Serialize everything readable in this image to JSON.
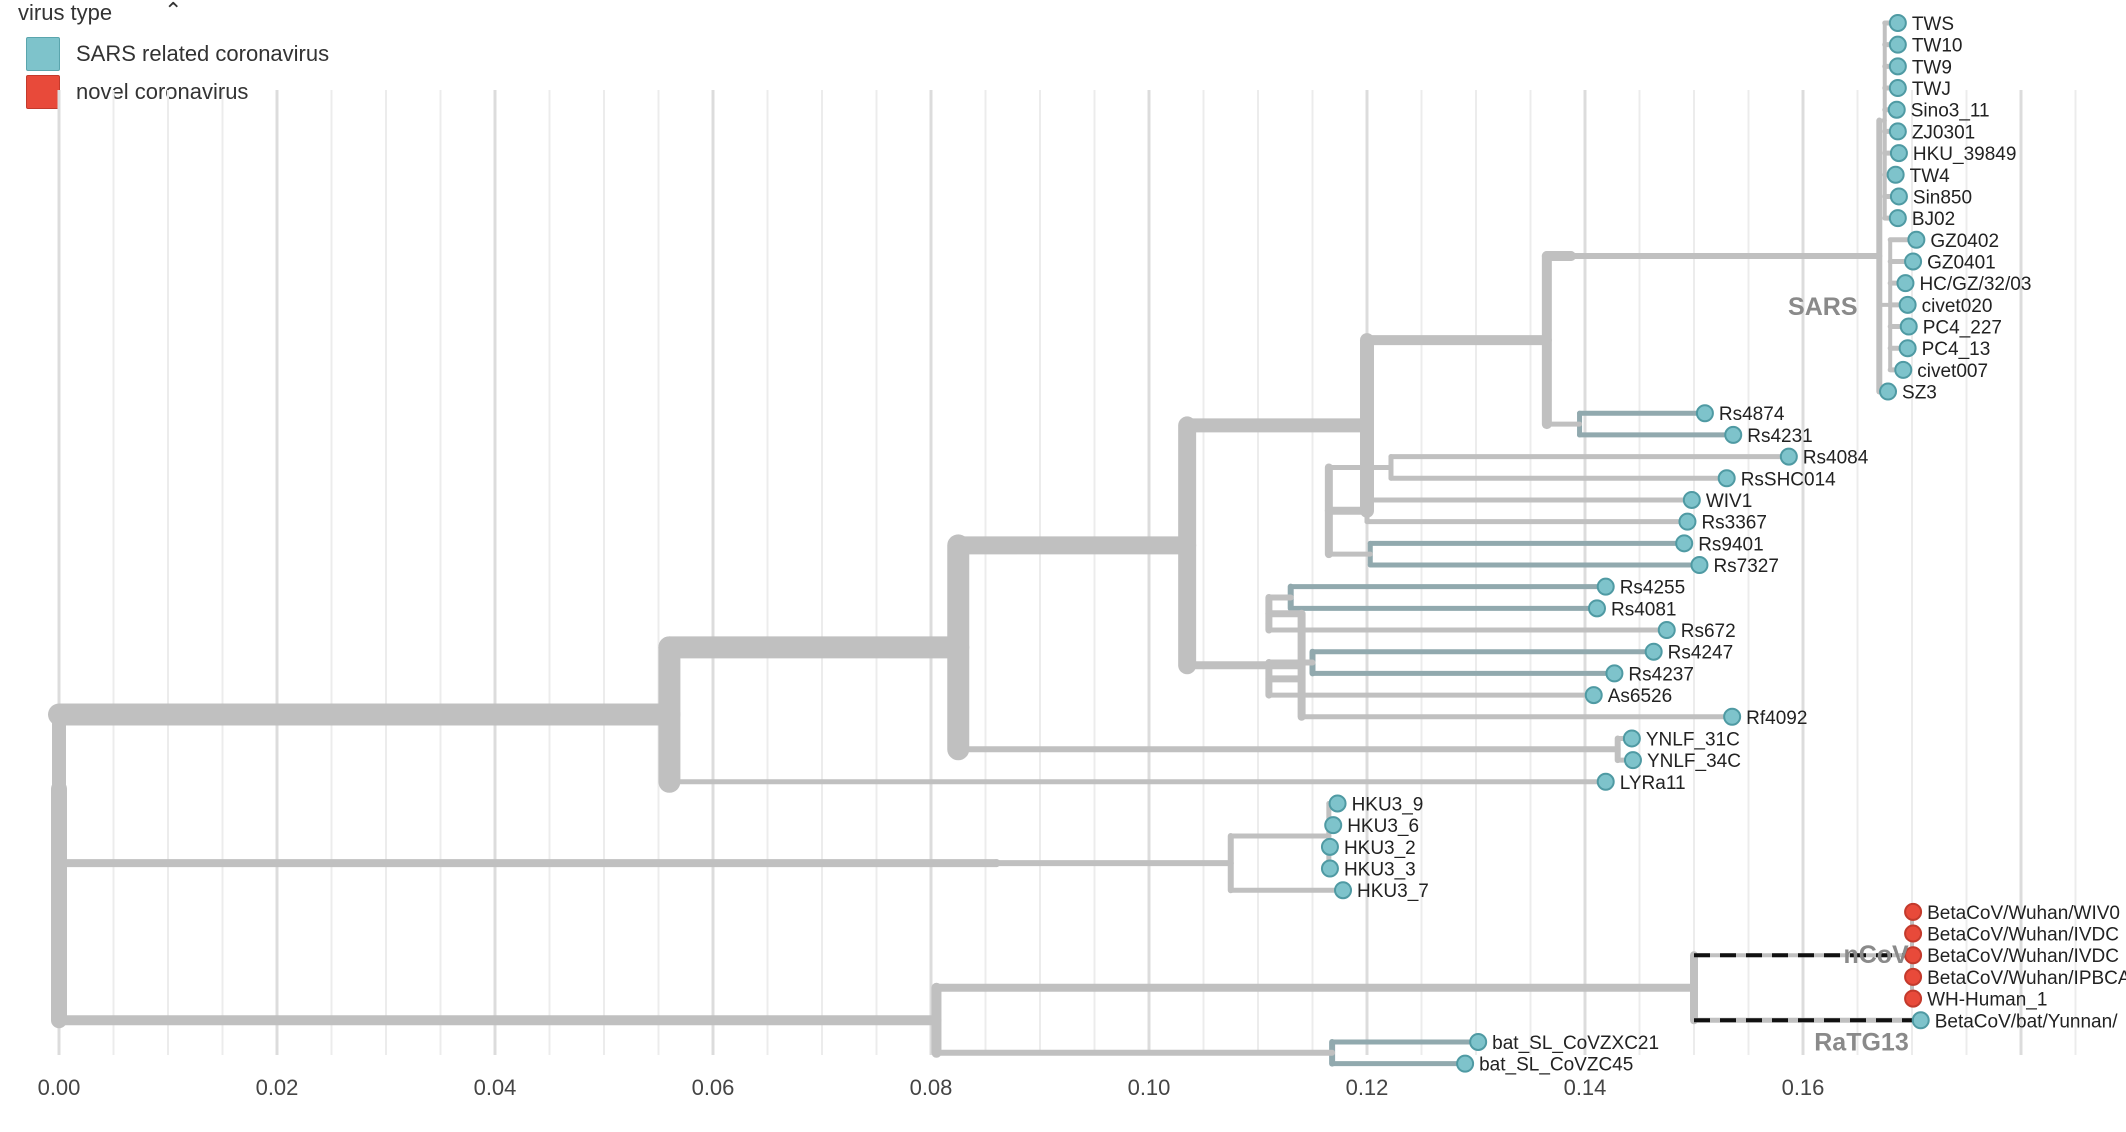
{
  "legend": {
    "title": "virus type",
    "caret_icon": "chevron-up-icon",
    "items": [
      {
        "label": "SARS related coronavirus",
        "color": "#7ec3cb"
      },
      {
        "label": "novel coronavirus",
        "color": "#e84a3a"
      }
    ]
  },
  "chart_data": {
    "type": "phylogenetic-tree",
    "xlabel": "",
    "xlim": [
      0,
      0.19
    ],
    "x_ticks": [
      "0.00",
      "0.02",
      "0.04",
      "0.06",
      "0.08",
      "0.10",
      "0.12",
      "0.14",
      "0.16"
    ],
    "clade_labels": [
      {
        "label": "SARS",
        "node": "sars"
      },
      {
        "label": "nCoV",
        "node": "ncov"
      },
      {
        "label": "RaTG13",
        "node": "ratg13"
      }
    ],
    "tips": [
      {
        "name": "TWS",
        "x": 0.1687,
        "type": "SARS related coronavirus"
      },
      {
        "name": "TW10",
        "x": 0.1687,
        "type": "SARS related coronavirus"
      },
      {
        "name": "TW9",
        "x": 0.1687,
        "type": "SARS related coronavirus"
      },
      {
        "name": "TWJ",
        "x": 0.1687,
        "type": "SARS related coronavirus"
      },
      {
        "name": "Sino3_11",
        "x": 0.1686,
        "type": "SARS related coronavirus"
      },
      {
        "name": "ZJ0301",
        "x": 0.1687,
        "type": "SARS related coronavirus"
      },
      {
        "name": "HKU_39849",
        "x": 0.1688,
        "type": "SARS related coronavirus"
      },
      {
        "name": "TW4",
        "x": 0.1685,
        "type": "SARS related coronavirus"
      },
      {
        "name": "Sin850",
        "x": 0.1688,
        "type": "SARS related coronavirus"
      },
      {
        "name": "BJ02",
        "x": 0.1687,
        "type": "SARS related coronavirus"
      },
      {
        "name": "GZ0402",
        "x": 0.1704,
        "type": "SARS related coronavirus"
      },
      {
        "name": "GZ0401",
        "x": 0.1701,
        "type": "SARS related coronavirus"
      },
      {
        "name": "HC/GZ/32/03",
        "x": 0.1694,
        "type": "SARS related coronavirus"
      },
      {
        "name": "civet020",
        "x": 0.1696,
        "type": "SARS related coronavirus"
      },
      {
        "name": "PC4_227",
        "x": 0.1697,
        "type": "SARS related coronavirus"
      },
      {
        "name": "PC4_13",
        "x": 0.1696,
        "type": "SARS related coronavirus"
      },
      {
        "name": "civet007",
        "x": 0.1692,
        "type": "SARS related coronavirus"
      },
      {
        "name": "SZ3",
        "x": 0.1678,
        "type": "SARS related coronavirus"
      },
      {
        "name": "Rs4874",
        "x": 0.151,
        "type": "SARS related coronavirus"
      },
      {
        "name": "Rs4231",
        "x": 0.1536,
        "type": "SARS related coronavirus"
      },
      {
        "name": "Rs4084",
        "x": 0.1587,
        "type": "SARS related coronavirus"
      },
      {
        "name": "RsSHC014",
        "x": 0.153,
        "type": "SARS related coronavirus"
      },
      {
        "name": "WIV1",
        "x": 0.1498,
        "type": "SARS related coronavirus"
      },
      {
        "name": "Rs3367",
        "x": 0.1494,
        "type": "SARS related coronavirus"
      },
      {
        "name": "Rs9401",
        "x": 0.1491,
        "type": "SARS related coronavirus"
      },
      {
        "name": "Rs7327",
        "x": 0.1505,
        "type": "SARS related coronavirus"
      },
      {
        "name": "Rs4255",
        "x": 0.1419,
        "type": "SARS related coronavirus"
      },
      {
        "name": "Rs4081",
        "x": 0.1411,
        "type": "SARS related coronavirus"
      },
      {
        "name": "Rs672",
        "x": 0.1475,
        "type": "SARS related coronavirus"
      },
      {
        "name": "Rs4247",
        "x": 0.1463,
        "type": "SARS related coronavirus"
      },
      {
        "name": "Rs4237",
        "x": 0.1427,
        "type": "SARS related coronavirus"
      },
      {
        "name": "As6526",
        "x": 0.1408,
        "type": "SARS related coronavirus"
      },
      {
        "name": "Rf4092",
        "x": 0.1535,
        "type": "SARS related coronavirus"
      },
      {
        "name": "YNLF_31C",
        "x": 0.1443,
        "type": "SARS related coronavirus"
      },
      {
        "name": "YNLF_34C",
        "x": 0.1444,
        "type": "SARS related coronavirus"
      },
      {
        "name": "LYRa11",
        "x": 0.1419,
        "type": "SARS related coronavirus"
      },
      {
        "name": "HKU3_9",
        "x": 0.1173,
        "type": "SARS related coronavirus"
      },
      {
        "name": "HKU3_6",
        "x": 0.1169,
        "type": "SARS related coronavirus"
      },
      {
        "name": "HKU3_2",
        "x": 0.1166,
        "type": "SARS related coronavirus"
      },
      {
        "name": "HKU3_3",
        "x": 0.1166,
        "type": "SARS related coronavirus"
      },
      {
        "name": "HKU3_7",
        "x": 0.1178,
        "type": "SARS related coronavirus"
      },
      {
        "name": "BetaCoV/Wuhan/WIV0",
        "x": 0.1701,
        "type": "novel coronavirus"
      },
      {
        "name": "BetaCoV/Wuhan/IVDC",
        "x": 0.1701,
        "type": "novel coronavirus"
      },
      {
        "name": "BetaCoV/Wuhan/IVDC",
        "x": 0.1701,
        "type": "novel coronavirus"
      },
      {
        "name": "BetaCoV/Wuhan/IPBCA",
        "x": 0.1701,
        "type": "novel coronavirus"
      },
      {
        "name": "WH-Human_1",
        "x": 0.1701,
        "type": "novel coronavirus"
      },
      {
        "name": "BetaCoV/bat/Yunnan/",
        "x": 0.1708,
        "type": "SARS related coronavirus"
      },
      {
        "name": "bat_SL_CoVZXC21",
        "x": 0.1302,
        "type": "SARS related coronavirus"
      },
      {
        "name": "bat_SL_CoVZC45",
        "x": 0.129,
        "type": "SARS related coronavirus"
      }
    ]
  }
}
